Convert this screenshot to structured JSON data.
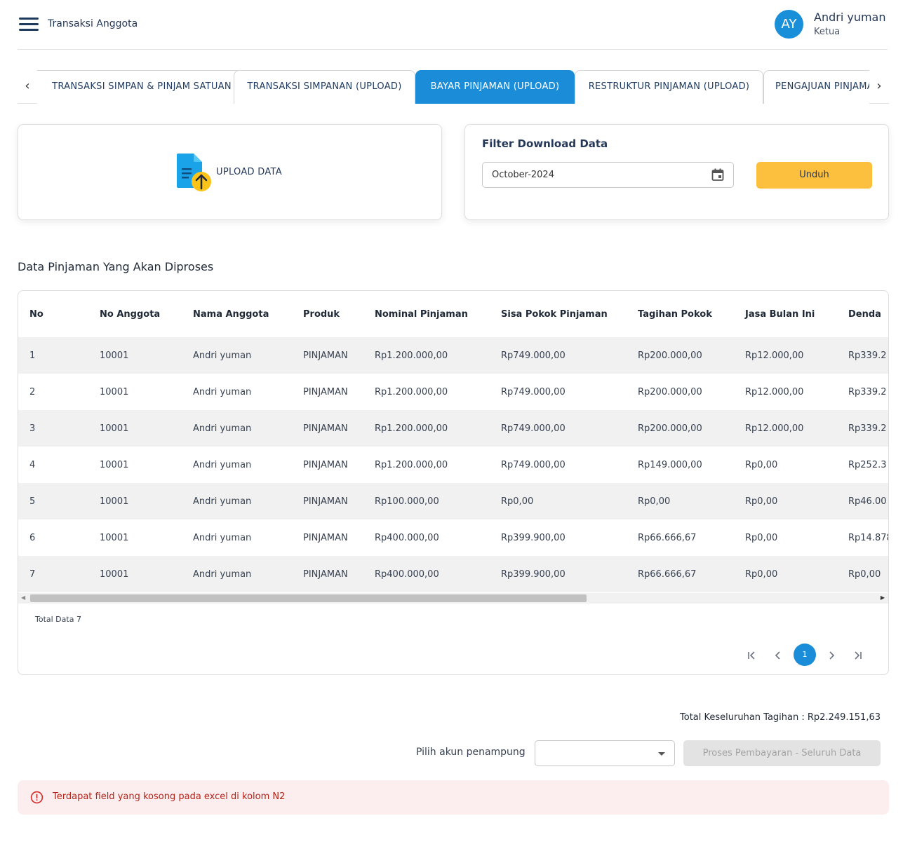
{
  "header": {
    "menu_icon": "hamburger-menu-icon",
    "title": "Transaksi Anggota",
    "user": {
      "initials": "AY",
      "name": "Andri yuman",
      "role": "Ketua",
      "avatar_color": "#1a8fd9"
    }
  },
  "tabs": [
    {
      "label": "TRANSAKSI SIMPAN & PINJAM SATUAN",
      "active": false
    },
    {
      "label": "TRANSAKSI SIMPANAN (UPLOAD)",
      "active": false
    },
    {
      "label": "BAYAR PINJAMAN (UPLOAD)",
      "active": true
    },
    {
      "label": "RESTRUKTUR PINJAMAN (UPLOAD)",
      "active": false
    },
    {
      "label": "PENGAJUAN PINJAMAN (UPLOAD)",
      "active": false
    }
  ],
  "upload": {
    "label": "UPLOAD DATA",
    "icon": "upload-document-icon"
  },
  "filter": {
    "title": "Filter Download Data",
    "month_value": "October-2024",
    "calendar_icon": "calendar-icon",
    "download_label": "Unduh",
    "download_color": "#fcbf3e"
  },
  "section_title": "Data Pinjaman Yang Akan Diproses",
  "table": {
    "columns": [
      "No",
      "No Anggota",
      "Nama Anggota",
      "Produk",
      "Nominal Pinjaman",
      "Sisa Pokok Pinjaman",
      "Tagihan Pokok",
      "Jasa Bulan Ini",
      "Denda"
    ],
    "rows": [
      [
        "1",
        "10001",
        "Andri yuman",
        "PINJAMAN",
        "Rp1.200.000,00",
        "Rp749.000,00",
        "Rp200.000,00",
        "Rp12.000,00",
        "Rp339.2"
      ],
      [
        "2",
        "10001",
        "Andri yuman",
        "PINJAMAN",
        "Rp1.200.000,00",
        "Rp749.000,00",
        "Rp200.000,00",
        "Rp12.000,00",
        "Rp339.2"
      ],
      [
        "3",
        "10001",
        "Andri yuman",
        "PINJAMAN",
        "Rp1.200.000,00",
        "Rp749.000,00",
        "Rp200.000,00",
        "Rp12.000,00",
        "Rp339.2"
      ],
      [
        "4",
        "10001",
        "Andri yuman",
        "PINJAMAN",
        "Rp1.200.000,00",
        "Rp749.000,00",
        "Rp149.000,00",
        "Rp0,00",
        "Rp252.3"
      ],
      [
        "5",
        "10001",
        "Andri yuman",
        "PINJAMAN",
        "Rp100.000,00",
        "Rp0,00",
        "Rp0,00",
        "Rp0,00",
        "Rp46.00"
      ],
      [
        "6",
        "10001",
        "Andri yuman",
        "PINJAMAN",
        "Rp400.000,00",
        "Rp399.900,00",
        "Rp66.666,67",
        "Rp0,00",
        "Rp14.878"
      ],
      [
        "7",
        "10001",
        "Andri yuman",
        "PINJAMAN",
        "Rp400.000,00",
        "Rp399.900,00",
        "Rp66.666,67",
        "Rp0,00",
        "Rp0,00"
      ]
    ],
    "total_label": "Total Data 7",
    "pagination": {
      "current_page": "1",
      "first_icon": "first-page-icon",
      "prev_icon": "chevron-left-icon",
      "next_icon": "chevron-right-icon",
      "last_icon": "last-page-icon"
    }
  },
  "summary": {
    "grand_total": "Total Keseluruhan Tagihan : Rp2.249.151,63",
    "account_label": "Pilih akun penampung",
    "account_value": "",
    "process_label": "Proses Pembayaran - Seluruh Data"
  },
  "alert": {
    "icon": "error-circle-icon",
    "message": "Terdapat field yang kosong pada excel di kolom N2",
    "color": "#b42318"
  },
  "accent_color": "#1b8cd8"
}
